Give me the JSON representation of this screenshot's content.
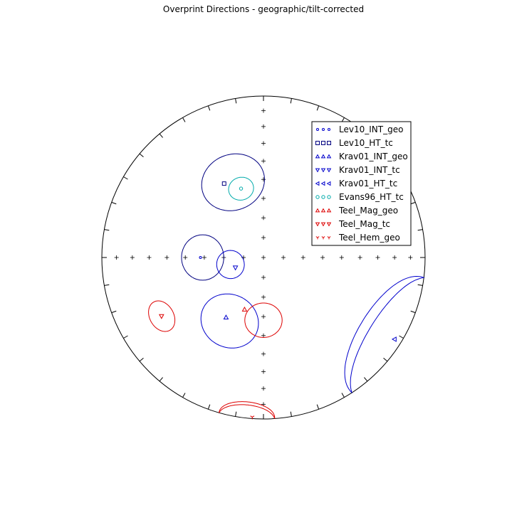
{
  "chart_data": {
    "type": "scatter",
    "projection": "equal-area stereonet (lower hemisphere)",
    "title": "Overprint Directions - geographic/tilt-corrected",
    "legend_position": "top-right",
    "series": [
      {
        "name": "Lev10_INT_geo",
        "marker": "circle-small",
        "color": "#0000cc",
        "points": [
          {
            "dec": 270,
            "inc": 58,
            "a95": 15
          }
        ]
      },
      {
        "name": "Lev10_HT_tc",
        "marker": "square",
        "color": "#000080",
        "points": [
          {
            "dec": 332,
            "inc": 47,
            "a95": 18
          }
        ]
      },
      {
        "name": "Krav01_INT_geo",
        "marker": "triangle-up",
        "color": "#0000cc",
        "points": [
          {
            "dec": 212,
            "inc": 54,
            "a95": 16
          }
        ]
      },
      {
        "name": "Krav01_INT_tc",
        "marker": "triangle-down",
        "color": "#0000cc",
        "points": [
          {
            "dec": 250,
            "inc": 75,
            "a95": 8
          }
        ]
      },
      {
        "name": "Krav01_HT_tc",
        "marker": "triangle-left",
        "color": "#0000cc",
        "points": [
          {
            "dec": 122,
            "inc": 5,
            "a95": 20
          }
        ]
      },
      {
        "name": "Evans96_HT_tc",
        "marker": "circle",
        "color": "#00aaaa",
        "points": [
          {
            "dec": 342,
            "inc": 53,
            "a95": 9
          }
        ]
      },
      {
        "name": "Teel_Mag_geo",
        "marker": "triangle-up",
        "color": "#dd0000",
        "points": [
          {
            "dec": 200,
            "inc": 62,
            "a95": 0
          }
        ]
      },
      {
        "name": "Teel_Mag_tc",
        "marker": "triangle-down",
        "color": "#dd0000",
        "points": [
          {
            "dec": 240,
            "inc": 28,
            "a95": 9
          }
        ]
      },
      {
        "name": "Teel_Hem_geo",
        "marker": "tri-down",
        "color": "#dd0000",
        "points": [
          {
            "dec": 184,
            "inc": 1,
            "a95": 10
          }
        ]
      }
    ],
    "legend": [
      "Lev10_INT_geo",
      "Lev10_HT_tc",
      "Krav01_INT_geo",
      "Krav01_INT_tc",
      "Krav01_HT_tc",
      "Evans96_HT_tc",
      "Teel_Mag_geo",
      "Teel_Mag_tc",
      "Teel_Hem_geo"
    ],
    "ellipses": [
      {
        "series": "Lev10_HT_tc",
        "color": "#000080",
        "dec": 338,
        "inc": 48,
        "a95": 15
      },
      {
        "series": "Evans96_HT_tc",
        "color": "#00aaaa",
        "dec": 342,
        "inc": 53,
        "a95": 6
      },
      {
        "series": "Lev10_INT_geo",
        "color": "#000080",
        "dec": 270,
        "inc": 59,
        "a95": 11
      },
      {
        "series": "Krav01_INT_tc",
        "color": "#0000cc",
        "dec": 258,
        "inc": 73,
        "a95": 7
      },
      {
        "series": "Krav01_INT_geo",
        "color": "#0000cc",
        "dec": 208,
        "inc": 53,
        "a95": 14
      },
      {
        "series": "Teel_Mag_geo",
        "color": "#dd0000",
        "dec": 180,
        "inc": 58,
        "a95": 9
      },
      {
        "series": "Teel_Mag_tc",
        "color": "#dd0000",
        "dec": 240,
        "inc": 28,
        "a95": 7
      },
      {
        "series": "Teel_Hem_geo",
        "color": "#dd0000",
        "dec": 186,
        "inc": 1,
        "a95": 10
      },
      {
        "series": "Krav01_HT_tc",
        "color": "#0000cc",
        "dec": 122,
        "inc": 3,
        "a95": 25
      }
    ]
  }
}
